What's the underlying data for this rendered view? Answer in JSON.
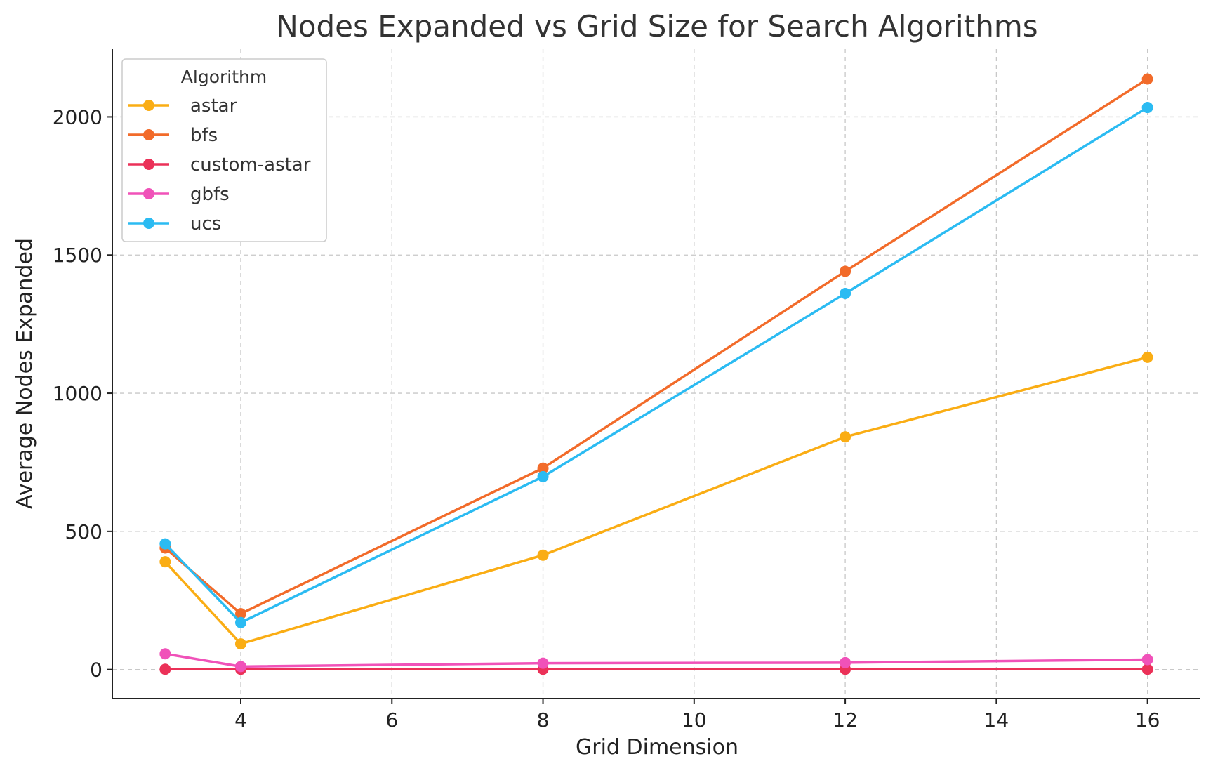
{
  "chart_data": {
    "type": "line",
    "title": "Nodes Expanded vs Grid Size for Search Algorithms",
    "xlabel": "Grid Dimension",
    "ylabel": "Average Nodes Expanded",
    "xlim": [
      2.3,
      16.7
    ],
    "ylim": [
      -105,
      2245
    ],
    "xticks": [
      4,
      6,
      8,
      10,
      12,
      14,
      16
    ],
    "yticks": [
      0,
      500,
      1000,
      1500,
      2000
    ],
    "x": [
      3,
      4,
      8,
      12,
      16
    ],
    "grid": true,
    "legend_title": "Algorithm",
    "legend_position": "top-left",
    "series": [
      {
        "name": "astar",
        "color": "#FAAD14",
        "values": [
          390,
          93,
          414,
          842,
          1130
        ]
      },
      {
        "name": "bfs",
        "color": "#F26B2A",
        "values": [
          440,
          202,
          729,
          1441,
          2137
        ]
      },
      {
        "name": "custom-astar",
        "color": "#EB3158",
        "values": [
          1,
          1,
          1,
          1,
          1
        ]
      },
      {
        "name": "gbfs",
        "color": "#F052B9",
        "values": [
          57,
          11,
          23,
          25,
          36
        ]
      },
      {
        "name": "ucs",
        "color": "#2BBBF2",
        "values": [
          455,
          170,
          698,
          1361,
          2034
        ]
      }
    ]
  }
}
